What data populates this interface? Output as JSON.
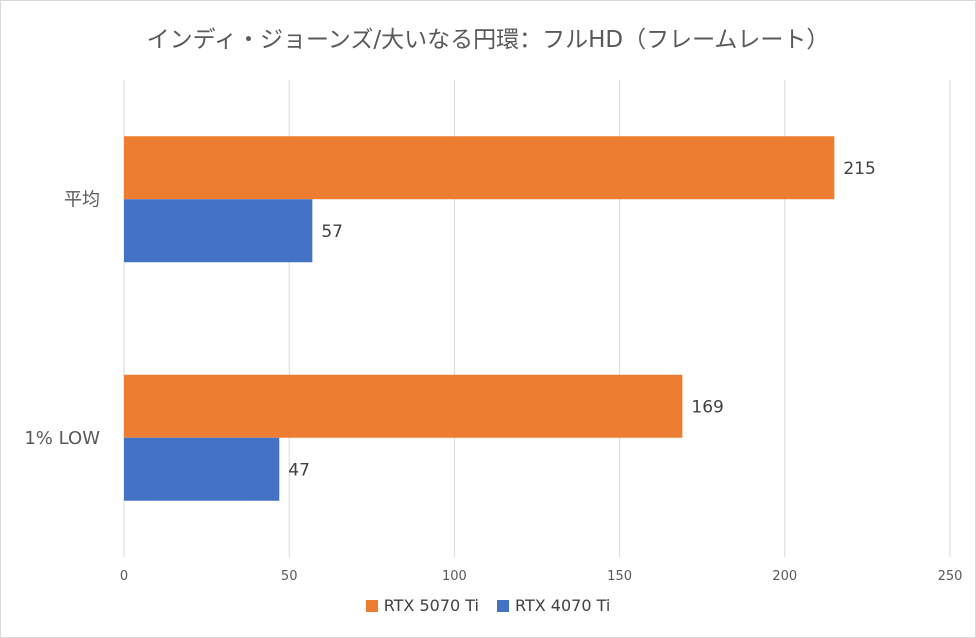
{
  "chart_data": {
    "type": "bar",
    "orientation": "horizontal",
    "title": "インディ・ジョーンズ/大いなる円環：フルHD（フレームレート）",
    "categories": [
      "平均",
      "1% LOW"
    ],
    "series": [
      {
        "name": "RTX 5070 Ti",
        "color": "#ED7D31",
        "values": [
          215,
          169
        ]
      },
      {
        "name": "RTX 4070 Ti",
        "color": "#4472C4",
        "values": [
          57,
          47
        ]
      }
    ],
    "xlim": [
      0,
      250
    ],
    "xticks": [
      0,
      50,
      100,
      150,
      200,
      250
    ],
    "xlabel": "",
    "ylabel": "",
    "grid": true,
    "legend": "bottom"
  }
}
